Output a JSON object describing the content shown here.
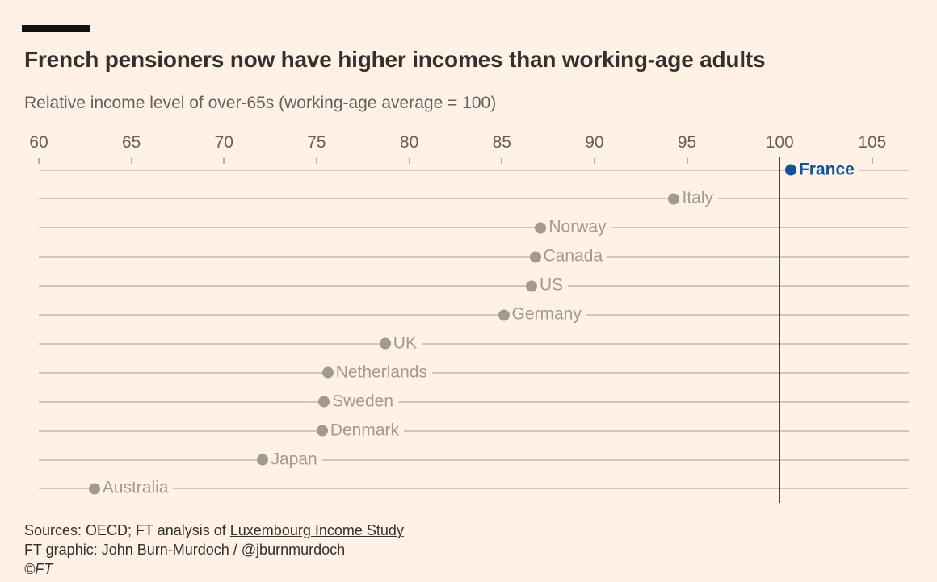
{
  "page": {
    "title": "French pensioners now have higher incomes than working-age adults",
    "subtitle": "Relative income level of over-65s (working-age average = 100)",
    "background_color": "#FFF1E5"
  },
  "footer": {
    "sources_prefix": "Sources: OECD; FT analysis of ",
    "sources_link": "Luxembourg Income Study",
    "credit": "FT graphic: John Burn-Murdoch / @jburnmurdoch",
    "copyright": "©FT"
  },
  "chart_data": {
    "type": "scatter",
    "subtype": "horizontal-dot-plot",
    "title": "French pensioners now have higher incomes than working-age adults",
    "subtitle": "Relative income level of over-65s (working-age average = 100)",
    "xlabel": "Relative income level of over-65s (working-age average = 100)",
    "ylabel": "",
    "xlim": [
      60,
      105
    ],
    "x_ticks": [
      60,
      65,
      70,
      75,
      80,
      85,
      90,
      95,
      100,
      105
    ],
    "reference_line_x": 100,
    "grid": "one horizontal line per country row",
    "legend": "none",
    "points": [
      {
        "label": "France",
        "value": 100.6,
        "highlight": true
      },
      {
        "label": "Italy",
        "value": 94.3,
        "highlight": false
      },
      {
        "label": "Norway",
        "value": 87.1,
        "highlight": false
      },
      {
        "label": "Canada",
        "value": 86.8,
        "highlight": false
      },
      {
        "label": "US",
        "value": 86.6,
        "highlight": false
      },
      {
        "label": "Germany",
        "value": 85.1,
        "highlight": false
      },
      {
        "label": "UK",
        "value": 78.7,
        "highlight": false
      },
      {
        "label": "Netherlands",
        "value": 75.6,
        "highlight": false
      },
      {
        "label": "Sweden",
        "value": 75.4,
        "highlight": false
      },
      {
        "label": "Denmark",
        "value": 75.3,
        "highlight": false
      },
      {
        "label": "Japan",
        "value": 72.1,
        "highlight": false
      },
      {
        "label": "Australia",
        "value": 63.0,
        "highlight": false
      }
    ],
    "colors": {
      "background": "#FFF1E5",
      "highlight": "#0f5499",
      "dot_default": "#a39a8f",
      "gridline": "#d0c7b9",
      "reference_line": "#4a443f",
      "axis_label": "#66605c",
      "title": "#33302e"
    }
  }
}
